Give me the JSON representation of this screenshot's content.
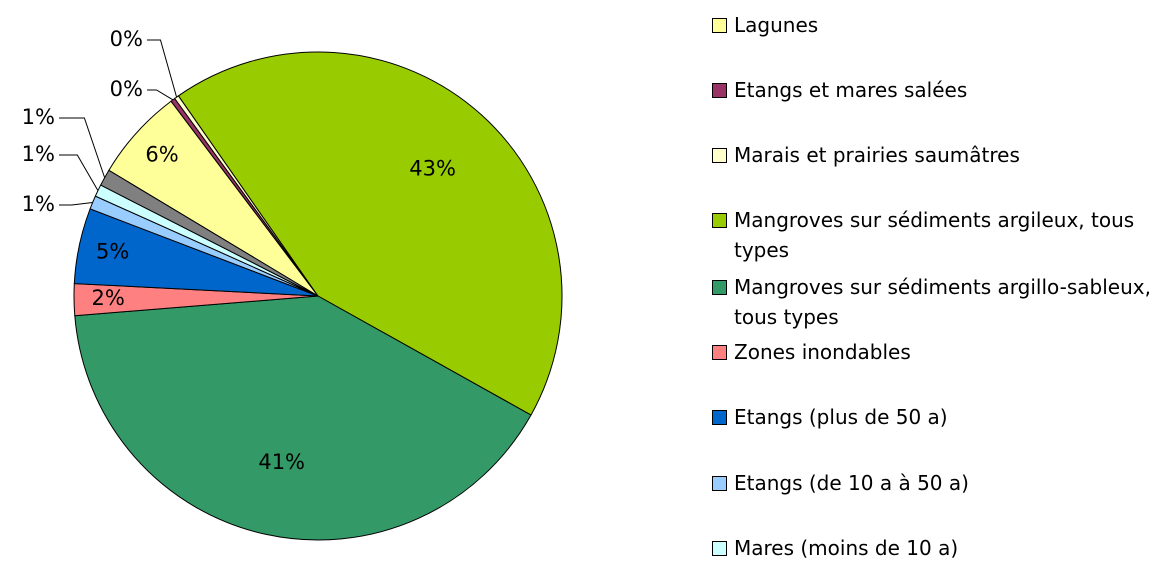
{
  "chart_data": {
    "type": "pie",
    "categories": [
      "Lagunes",
      "Etangs et mares salées",
      "Marais et prairies saumâtres",
      "Mangroves sur sédiments argileux, tous types",
      "Mangroves sur sédiments argillo-sableux, tous types",
      "Zones inondables",
      "Etangs (plus de 50 a)",
      "Etangs (de 10 a à 50 a)",
      "Mares (moins de 10 a)",
      null
    ],
    "values": [
      6.1,
      0.3,
      0.3,
      42.8,
      40.6,
      2.1,
      5.0,
      0.9,
      0.8,
      1.1
    ],
    "value_labels": [
      "6%",
      "0%",
      "0%",
      "43%",
      "41%",
      "2%",
      "5%",
      "1%",
      "1%",
      "1%"
    ],
    "colors": [
      "#ffff99",
      "#993366",
      "#ffffcc",
      "#99cc00",
      "#339966",
      "#ff8080",
      "#0066cc",
      "#99ccff",
      "#ccffff",
      "#808080"
    ]
  }
}
